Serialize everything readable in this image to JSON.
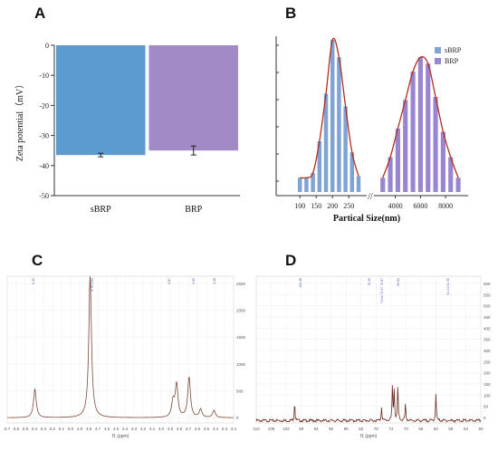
{
  "panels": {
    "a": "A",
    "b": "B",
    "c": "C",
    "d": "D"
  },
  "chart_data": [
    {
      "id": "A",
      "type": "bar",
      "categories": [
        "sBRP",
        "BRP"
      ],
      "values": [
        -36.5,
        -35
      ],
      "errors": [
        0.6,
        1.5
      ],
      "ylabel": "Zeta potential（mV）",
      "ylim": [
        -50,
        0
      ],
      "yticks": [
        0,
        -10,
        -20,
        -30,
        -40,
        -50
      ],
      "colors": [
        "#5b9bd0",
        "#a28ac6"
      ],
      "grid": false
    },
    {
      "id": "B",
      "type": "bar",
      "xlabel": "Partical Size(nm)",
      "legend": {
        "placement": "top-right",
        "entries": [
          "sBRP",
          "BRP"
        ]
      },
      "colors": [
        "#7fa3d4",
        "#9a86d0"
      ],
      "fit_color": "#b03020",
      "segments": [
        {
          "series": "sBRP",
          "xticks": [
            100,
            150,
            200,
            250
          ],
          "xlim": [
            55,
            305
          ],
          "x": [
            100,
            120,
            140,
            160,
            180,
            200,
            220,
            240,
            260,
            280
          ],
          "values": [
            0.09,
            0.09,
            0.12,
            0.32,
            0.62,
            0.96,
            0.85,
            0.54,
            0.25,
            0.1
          ]
        },
        {
          "series": "BRP",
          "xticks": [
            4000,
            6000,
            8000
          ],
          "xlim": [
            2300,
            9500
          ],
          "x": [
            3000,
            3600,
            4200,
            4800,
            5400,
            6000,
            6600,
            7200,
            7800,
            8400,
            9000
          ],
          "values": [
            0.09,
            0.22,
            0.4,
            0.58,
            0.76,
            0.85,
            0.81,
            0.6,
            0.38,
            0.22,
            0.09
          ]
        }
      ],
      "breakmark": "//"
    },
    {
      "id": "C",
      "type": "line",
      "xlabel": "f1 (ppm)",
      "xticks": [
        "5.7",
        "5.6",
        "5.5",
        "5.4",
        "5.3",
        "5.2",
        "5.1",
        "5.0",
        "4.9",
        "4.8",
        "4.7",
        "4.6",
        "4.5",
        "4.4",
        "4.3",
        "4.2",
        "4.1",
        "4.0",
        "3.9",
        "3.8",
        "3.7",
        "3.6",
        "3.5",
        "3.4",
        "3.3",
        "3.2"
      ],
      "yticks": [
        "0",
        "500",
        "1000",
        "1500",
        "2000",
        "2500"
      ],
      "peak_labels": [
        "5.42",
        "4.79 4.80",
        "3.87",
        "3.69",
        "3.40"
      ],
      "peaks": [
        {
          "ppm": 5.41,
          "height": 560
        },
        {
          "ppm": 4.79,
          "height": 2750
        },
        {
          "ppm": 3.86,
          "height": 300
        },
        {
          "ppm": 3.82,
          "height": 640
        },
        {
          "ppm": 3.68,
          "height": 780
        },
        {
          "ppm": 3.55,
          "height": 160
        },
        {
          "ppm": 3.4,
          "height": 140
        }
      ],
      "xlim": [
        5.72,
        3.18
      ],
      "ylim": [
        -100,
        2750
      ],
      "line_color": "#7a4a3a"
    },
    {
      "id": "D",
      "type": "line",
      "xlabel": "f1 (ppm)",
      "xticks": [
        "110",
        "106",
        "102",
        "98",
        "94",
        "90",
        "86",
        "82",
        "78",
        "74",
        "70",
        "66",
        "62",
        "58",
        "54",
        "50"
      ],
      "yticks": [
        "0",
        "50",
        "100",
        "150",
        "200",
        "250",
        "300",
        "350",
        "400",
        "450",
        "500",
        "550",
        "600"
      ],
      "peak_labels": [
        "100.38",
        "76.39",
        "73.44 73.37 72.87",
        "69.84",
        "61.41 61.35"
      ],
      "peaks": [
        {
          "ppm": 100.4,
          "height": 80
        },
        {
          "ppm": 76.4,
          "height": 60
        },
        {
          "ppm": 73.4,
          "height": 150
        },
        {
          "ppm": 72.9,
          "height": 140
        },
        {
          "ppm": 71.9,
          "height": 150
        },
        {
          "ppm": 69.8,
          "height": 70
        },
        {
          "ppm": 61.4,
          "height": 120
        }
      ],
      "xlim": [
        111,
        49
      ],
      "ylim": [
        -10,
        620
      ],
      "line_color": "#6a2f22"
    }
  ]
}
